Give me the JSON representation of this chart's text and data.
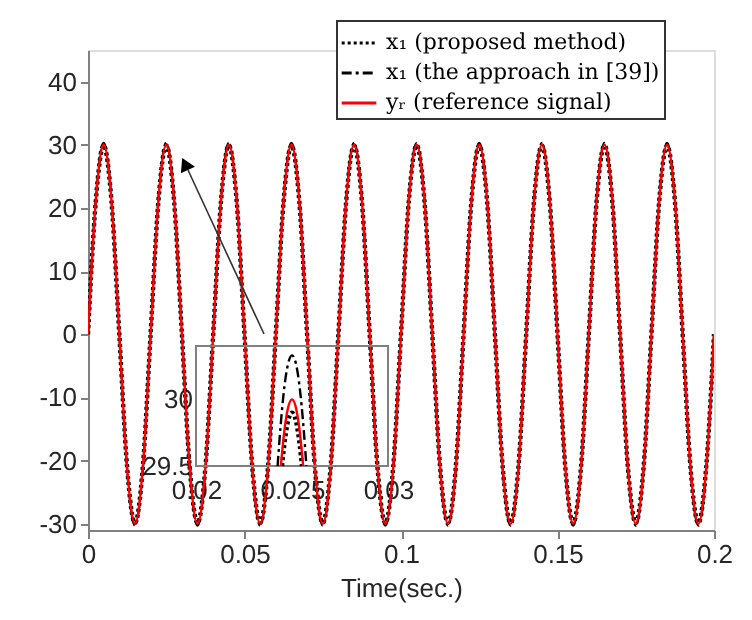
{
  "chart_data": [
    {
      "type": "line",
      "xlabel": "Time(sec.)",
      "xlim": [
        0,
        0.2
      ],
      "xticks": [
        0,
        0.05,
        0.1,
        0.15,
        0.2
      ],
      "ylim": [
        -31,
        45
      ],
      "yticks": [
        -30,
        -20,
        -10,
        0,
        10,
        20,
        30,
        40
      ],
      "legend": "top right",
      "x": [
        0,
        0.0025,
        0.005,
        0.0075,
        0.01,
        0.0125,
        0.015,
        0.0175,
        0.02,
        0.0225,
        0.025,
        0.0275,
        0.03,
        0.0325,
        0.035,
        0.0375,
        0.04,
        0.0425,
        0.045,
        0.0475,
        0.05,
        0.0525,
        0.055,
        0.0575,
        0.06,
        0.0625,
        0.065,
        0.0675,
        0.07,
        0.0725,
        0.075,
        0.0775,
        0.08,
        0.0825,
        0.085,
        0.0875,
        0.09,
        0.0925,
        0.095,
        0.0975,
        0.1,
        0.1025,
        0.105,
        0.1075,
        0.11,
        0.1125,
        0.115,
        0.1175,
        0.12,
        0.1225,
        0.125,
        0.1275,
        0.13,
        0.1325,
        0.135,
        0.1375,
        0.14,
        0.1425,
        0.145,
        0.1475,
        0.15,
        0.1525,
        0.155,
        0.1575,
        0.16,
        0.1625,
        0.165,
        0.1675,
        0.17,
        0.1725,
        0.175,
        0.1775,
        0.18,
        0.1825,
        0.185,
        0.1875,
        0.19,
        0.1925,
        0.195,
        0.1975,
        0.2
      ],
      "series": [
        {
          "name": "x₁ (proposed method)",
          "color": "#000000",
          "line_style": "dotted",
          "values": [
            0,
            21.1,
            29.9,
            21.1,
            0,
            -21.1,
            -29.9,
            -21.1,
            0,
            21.1,
            29.9,
            21.1,
            0,
            -21.1,
            -29.9,
            -21.1,
            0,
            21.1,
            29.9,
            21.1,
            0,
            -21.1,
            -29.9,
            -21.1,
            0,
            21.1,
            29.9,
            21.1,
            0,
            -21.1,
            -29.9,
            -21.1,
            0,
            21.1,
            29.9,
            21.1,
            0,
            -21.1,
            -29.9,
            -21.1,
            0,
            21.1,
            29.9,
            21.1,
            0,
            -21.1,
            -29.9,
            -21.1,
            0,
            21.1,
            29.9,
            21.1,
            0,
            -21.1,
            -29.9,
            -21.1,
            0,
            21.1,
            29.9,
            21.1,
            0,
            -21.1,
            -29.9,
            -21.1,
            0,
            21.1,
            29.9,
            21.1,
            0,
            -21.1,
            -29.9,
            -21.1,
            0,
            21.1,
            29.9,
            21.1,
            0,
            -21.1,
            -29.9,
            -21.1,
            0
          ]
        },
        {
          "name": "x₁ (the approach in [39])",
          "color": "#000000",
          "line_style": "dashed",
          "values": [
            0,
            21.4,
            30.3,
            21.4,
            0,
            -21.4,
            -30.3,
            -21.4,
            0,
            21.4,
            30.3,
            21.4,
            0,
            -21.4,
            -30.3,
            -21.4,
            0,
            21.4,
            30.3,
            21.4,
            0,
            -21.4,
            -30.3,
            -21.4,
            0,
            21.4,
            30.3,
            21.4,
            0,
            -21.4,
            -30.3,
            -21.4,
            0,
            21.4,
            30.3,
            21.4,
            0,
            -21.4,
            -30.3,
            -21.4,
            0,
            21.4,
            30.3,
            21.4,
            0,
            -21.4,
            -30.3,
            -21.4,
            0,
            21.4,
            30.3,
            21.4,
            0,
            -21.4,
            -30.3,
            -21.4,
            0,
            21.4,
            30.3,
            21.4,
            0,
            -21.4,
            -30.3,
            -21.4,
            0,
            21.4,
            30.3,
            21.4,
            0,
            -21.4,
            -30.3,
            -21.4,
            0,
            21.4,
            30.3,
            21.4,
            0,
            -21.4,
            -30.3,
            -21.4,
            0
          ]
        },
        {
          "name": "yᵣ (reference signal)",
          "color": "#ff0000",
          "line_style": "solid",
          "values": [
            0,
            21.2,
            30,
            21.2,
            0,
            -21.2,
            -30,
            -21.2,
            0,
            21.2,
            30,
            21.2,
            0,
            -21.2,
            -30,
            -21.2,
            0,
            21.2,
            30,
            21.2,
            0,
            -21.2,
            -30,
            -21.2,
            0,
            21.2,
            30,
            21.2,
            0,
            -21.2,
            -30,
            -21.2,
            0,
            21.2,
            30,
            21.2,
            0,
            -21.2,
            -30,
            -21.2,
            0,
            21.2,
            30,
            21.2,
            0,
            -21.2,
            -30,
            -21.2,
            0,
            21.2,
            30,
            21.2,
            0,
            -21.2,
            -30,
            -21.2,
            0,
            21.2,
            30,
            21.2,
            0,
            -21.2,
            -30,
            -21.2,
            0,
            21.2,
            30,
            21.2,
            0,
            -21.2,
            -30,
            -21.2,
            0,
            21.2,
            30,
            21.2,
            0,
            -21.2,
            -30,
            -21.2,
            0
          ]
        }
      ]
    },
    {
      "type": "line",
      "xlim": [
        0.02,
        0.03
      ],
      "xticks": [
        0.02,
        0.025,
        0.03
      ],
      "ylim": [
        29.5,
        30.4
      ],
      "yticks": [
        29.5,
        30
      ],
      "series": [
        {
          "color": "#000000",
          "line_style": "dotted",
          "x": [
            0.02448,
            0.0246,
            0.0248,
            0.025,
            0.0252,
            0.0254,
            0.02552
          ],
          "values": [
            29.5,
            29.66,
            29.84,
            29.9,
            29.84,
            29.66,
            29.5
          ]
        },
        {
          "color": "#000000",
          "line_style": "dashed",
          "x": [
            0.02425,
            0.0244,
            0.0246,
            0.0248,
            0.025,
            0.0252,
            0.0254,
            0.0256,
            0.02575
          ],
          "values": [
            29.5,
            29.79,
            30.09,
            30.27,
            30.33,
            30.27,
            30.09,
            29.79,
            29.5
          ]
        },
        {
          "color": "#ff0000",
          "line_style": "solid",
          "x": [
            0.02442,
            0.0246,
            0.0248,
            0.025,
            0.0252,
            0.0254,
            0.02558
          ],
          "values": [
            29.5,
            29.76,
            29.94,
            30,
            29.94,
            29.76,
            29.5
          ]
        }
      ]
    }
  ]
}
